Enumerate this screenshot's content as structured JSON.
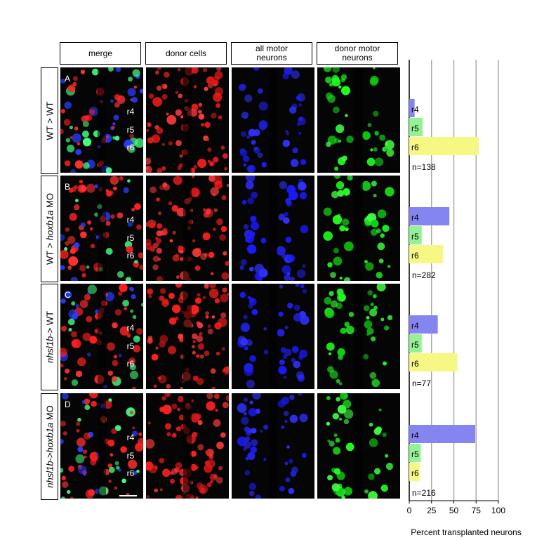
{
  "figure": {
    "columns": [
      "merge",
      "donor cells",
      "all motor neurons",
      "donor motor neurons"
    ],
    "rows": [
      {
        "letter": "A",
        "label": [
          {
            "text": "WT > WT",
            "italic": false
          }
        ],
        "regions": [
          "r4",
          "r5",
          "r6"
        ]
      },
      {
        "letter": "B",
        "label": [
          {
            "text": "WT > ",
            "italic": false
          },
          {
            "text": "hoxb1a",
            "italic": true
          },
          {
            "text": " MO",
            "italic": false
          }
        ],
        "regions": [
          "r4",
          "r5",
          "r6"
        ]
      },
      {
        "letter": "C",
        "label": [
          {
            "text": "nhsl1b",
            "italic": true
          },
          {
            "text": "-> WT",
            "italic": false
          }
        ],
        "regions": [
          "r4",
          "r5",
          "r6"
        ]
      },
      {
        "letter": "D",
        "label": [
          {
            "text": "nhsl1b",
            "italic": true
          },
          {
            "text": "->",
            "italic": false
          },
          {
            "text": "hoxb1a",
            "italic": true
          },
          {
            "text": " MO",
            "italic": false
          }
        ],
        "regions": [
          "r4",
          "r5",
          "r6"
        ]
      }
    ]
  },
  "chart_data": {
    "type": "bar",
    "categories": [
      "r4",
      "r5",
      "r6"
    ],
    "colors": [
      "#8585f2",
      "#94f294",
      "#f7f784"
    ],
    "groups": [
      {
        "values": [
          6,
          15,
          78
        ],
        "n_label": "n=138"
      },
      {
        "values": [
          45,
          14,
          38
        ],
        "n_label": "n=282"
      },
      {
        "values": [
          32,
          14,
          54
        ],
        "n_label": "n=77"
      },
      {
        "values": [
          74,
          13,
          12
        ],
        "n_label": "n=216"
      }
    ],
    "xlim": [
      0,
      100
    ],
    "xticks": [
      0,
      25,
      50,
      75,
      100
    ],
    "xlabel": "Percent transplanted neurons",
    "grid": true
  }
}
